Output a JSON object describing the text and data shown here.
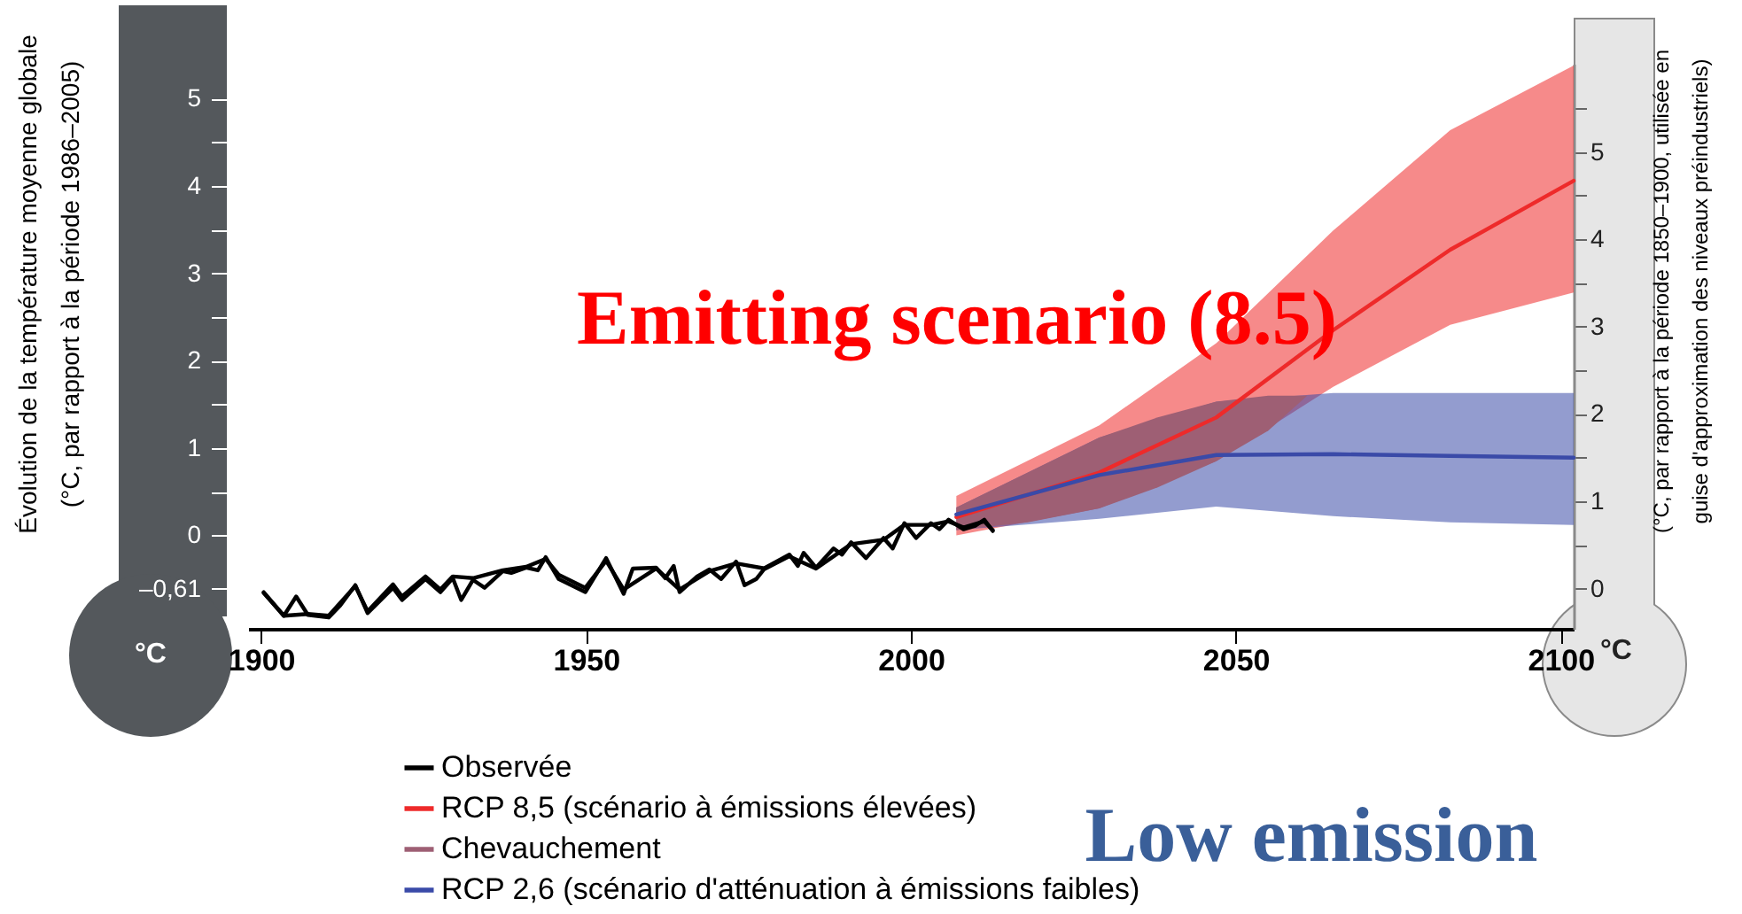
{
  "chart_data": {
    "type": "line",
    "ylabel": "Évolution de la température moyenne globale\n(°C, par rapport à la période 1986–2005)",
    "y2label": "(°C, par rapport à la période 1850–1900, utilisée en\nguise d'approximation des niveaux préindustriels)",
    "annotations": [
      "Emitting scenario (8.5)",
      "Low emission",
      "°C",
      "°C"
    ],
    "xlim": [
      1898,
      2102
    ],
    "xticks": [
      1900,
      1950,
      2000,
      2050,
      2100
    ],
    "ylim": [
      -1.07,
      5.4
    ],
    "yticks": [
      {
        "value": -0.61,
        "label": "–0,61"
      },
      0,
      {
        "value": 0.5,
        "label": null
      },
      1,
      {
        "value": 1.5,
        "label": null
      },
      2,
      {
        "value": 2.5,
        "label": null
      },
      3,
      {
        "value": 3.5,
        "label": null
      },
      4,
      {
        "value": 4.5,
        "label": null
      },
      5
    ],
    "y2lim": [
      -0.46,
      6.01
    ],
    "y2ticks": [
      0,
      {
        "value": 0.5,
        "label": null
      },
      1,
      {
        "value": 1.5,
        "label": null
      },
      2,
      {
        "value": 2.5,
        "label": null
      },
      3,
      {
        "value": 3.5,
        "label": null
      },
      4,
      {
        "value": 4.5,
        "label": null
      },
      5,
      {
        "value": 5.5,
        "label": null
      }
    ],
    "legend": "bottom",
    "series": [
      {
        "type": "line",
        "name": "Observée",
        "color": "#000000",
        "x": [
          1900.4,
          1903.5,
          1905.4,
          1907.2,
          1910.4,
          1912.2,
          1914.5,
          1916.4,
          1920.3,
          1921.7,
          1925.3,
          1927.6,
          1929.5,
          1930.8,
          1932.6,
          1934.4,
          1937.2,
          1938.5,
          1940.8,
          1942.6,
          1943.8,
          1945.8,
          1949.9,
          1953.1,
          1955.8,
          1957.2,
          1960.8,
          1962.2,
          1963.5,
          1964.4,
          1967.1,
          1969.0,
          1970.8,
          1973.1,
          1974.4,
          1976.2,
          1977.6,
          1981.3,
          1982.6,
          1983.5,
          1985.4,
          1988.1,
          1989.4,
          1990.8,
          1993.1,
          1995.8,
          1997.2,
          1999.0,
          2000.8,
          2003.1,
          2004.4,
          2005.8,
          2008.1,
          2009.9,
          2011.3,
          2012.6
        ],
        "values": [
          -0.65,
          -0.92,
          -0.7,
          -0.91,
          -0.94,
          -0.8,
          -0.57,
          -0.89,
          -0.6,
          -0.74,
          -0.5,
          -0.65,
          -0.49,
          -0.74,
          -0.51,
          -0.6,
          -0.41,
          -0.43,
          -0.37,
          -0.4,
          -0.25,
          -0.5,
          -0.65,
          -0.26,
          -0.67,
          -0.38,
          -0.37,
          -0.49,
          -0.35,
          -0.65,
          -0.47,
          -0.39,
          -0.5,
          -0.3,
          -0.57,
          -0.5,
          -0.37,
          -0.22,
          -0.35,
          -0.2,
          -0.37,
          -0.15,
          -0.22,
          -0.08,
          -0.26,
          -0.03,
          -0.15,
          0.14,
          -0.03,
          0.14,
          0.07,
          0.18,
          0.07,
          0.11,
          0.18,
          0.05
        ]
      },
      {
        "type": "line",
        "color": "#000000",
        "x": [
          1900.4,
          1903.5,
          1907.2,
          1910.4,
          1914.5,
          1916.4,
          1920.3,
          1921.7,
          1925.3,
          1927.6,
          1929.5,
          1932.6,
          1937.2,
          1940.8,
          1943.8,
          1945.8,
          1949.9,
          1953.1,
          1955.8,
          1960.8,
          1964.4,
          1969.0,
          1973.1,
          1977.6,
          1981.3,
          1985.4,
          1990.8,
          1995.8,
          1999.0,
          2003.1,
          2005.8,
          2008.1,
          2011.3,
          2012.6
        ],
        "values": [
          -0.66,
          -0.92,
          -0.9,
          -0.92,
          -0.58,
          -0.87,
          -0.56,
          -0.7,
          -0.47,
          -0.62,
          -0.47,
          -0.49,
          -0.4,
          -0.36,
          -0.27,
          -0.45,
          -0.6,
          -0.29,
          -0.62,
          -0.38,
          -0.62,
          -0.41,
          -0.32,
          -0.38,
          -0.24,
          -0.38,
          -0.1,
          -0.05,
          0.12,
          0.12,
          0.16,
          0.09,
          0.16,
          0.06
        ]
      },
      {
        "type": "line",
        "name": "RCP 8,5 (scénario à émissions élevées)",
        "color": "#ee2a2a",
        "x": [
          2007,
          2029,
          2047,
          2065,
          2083,
          2102
        ],
        "values": [
          0.21,
          0.72,
          1.35,
          2.35,
          3.27,
          4.06
        ],
        "lower": [
          0.0,
          0.31,
          0.85,
          1.7,
          2.41,
          2.78
        ],
        "upper": [
          0.45,
          1.26,
          2.2,
          3.49,
          4.64,
          5.38
        ]
      },
      {
        "type": "line",
        "name": "Chevauchement",
        "color": "#9e5f74",
        "x": [
          2007,
          2018,
          2029,
          2038,
          2047,
          2055,
          2061
        ],
        "values": [
          null,
          null,
          null,
          null,
          null,
          null,
          null
        ],
        "lower": [
          0.06,
          0.15,
          0.31,
          0.55,
          0.85,
          1.2,
          1.6
        ],
        "upper": [
          0.32,
          0.72,
          1.12,
          1.35,
          1.53,
          1.6,
          1.6
        ]
      },
      {
        "type": "line",
        "name": "RCP 2,6 (scénario d'atténuation à émissions faibles)",
        "color": "#3a4aa8",
        "x": [
          2007,
          2029,
          2047,
          2065,
          2083,
          2102
        ],
        "values": [
          0.24,
          0.69,
          0.92,
          0.93,
          0.91,
          0.89
        ],
        "lower": [
          0.06,
          0.19,
          0.33,
          0.22,
          0.15,
          0.12
        ],
        "upper": [
          0.32,
          1.12,
          1.53,
          1.63,
          1.63,
          1.63
        ]
      }
    ]
  }
}
